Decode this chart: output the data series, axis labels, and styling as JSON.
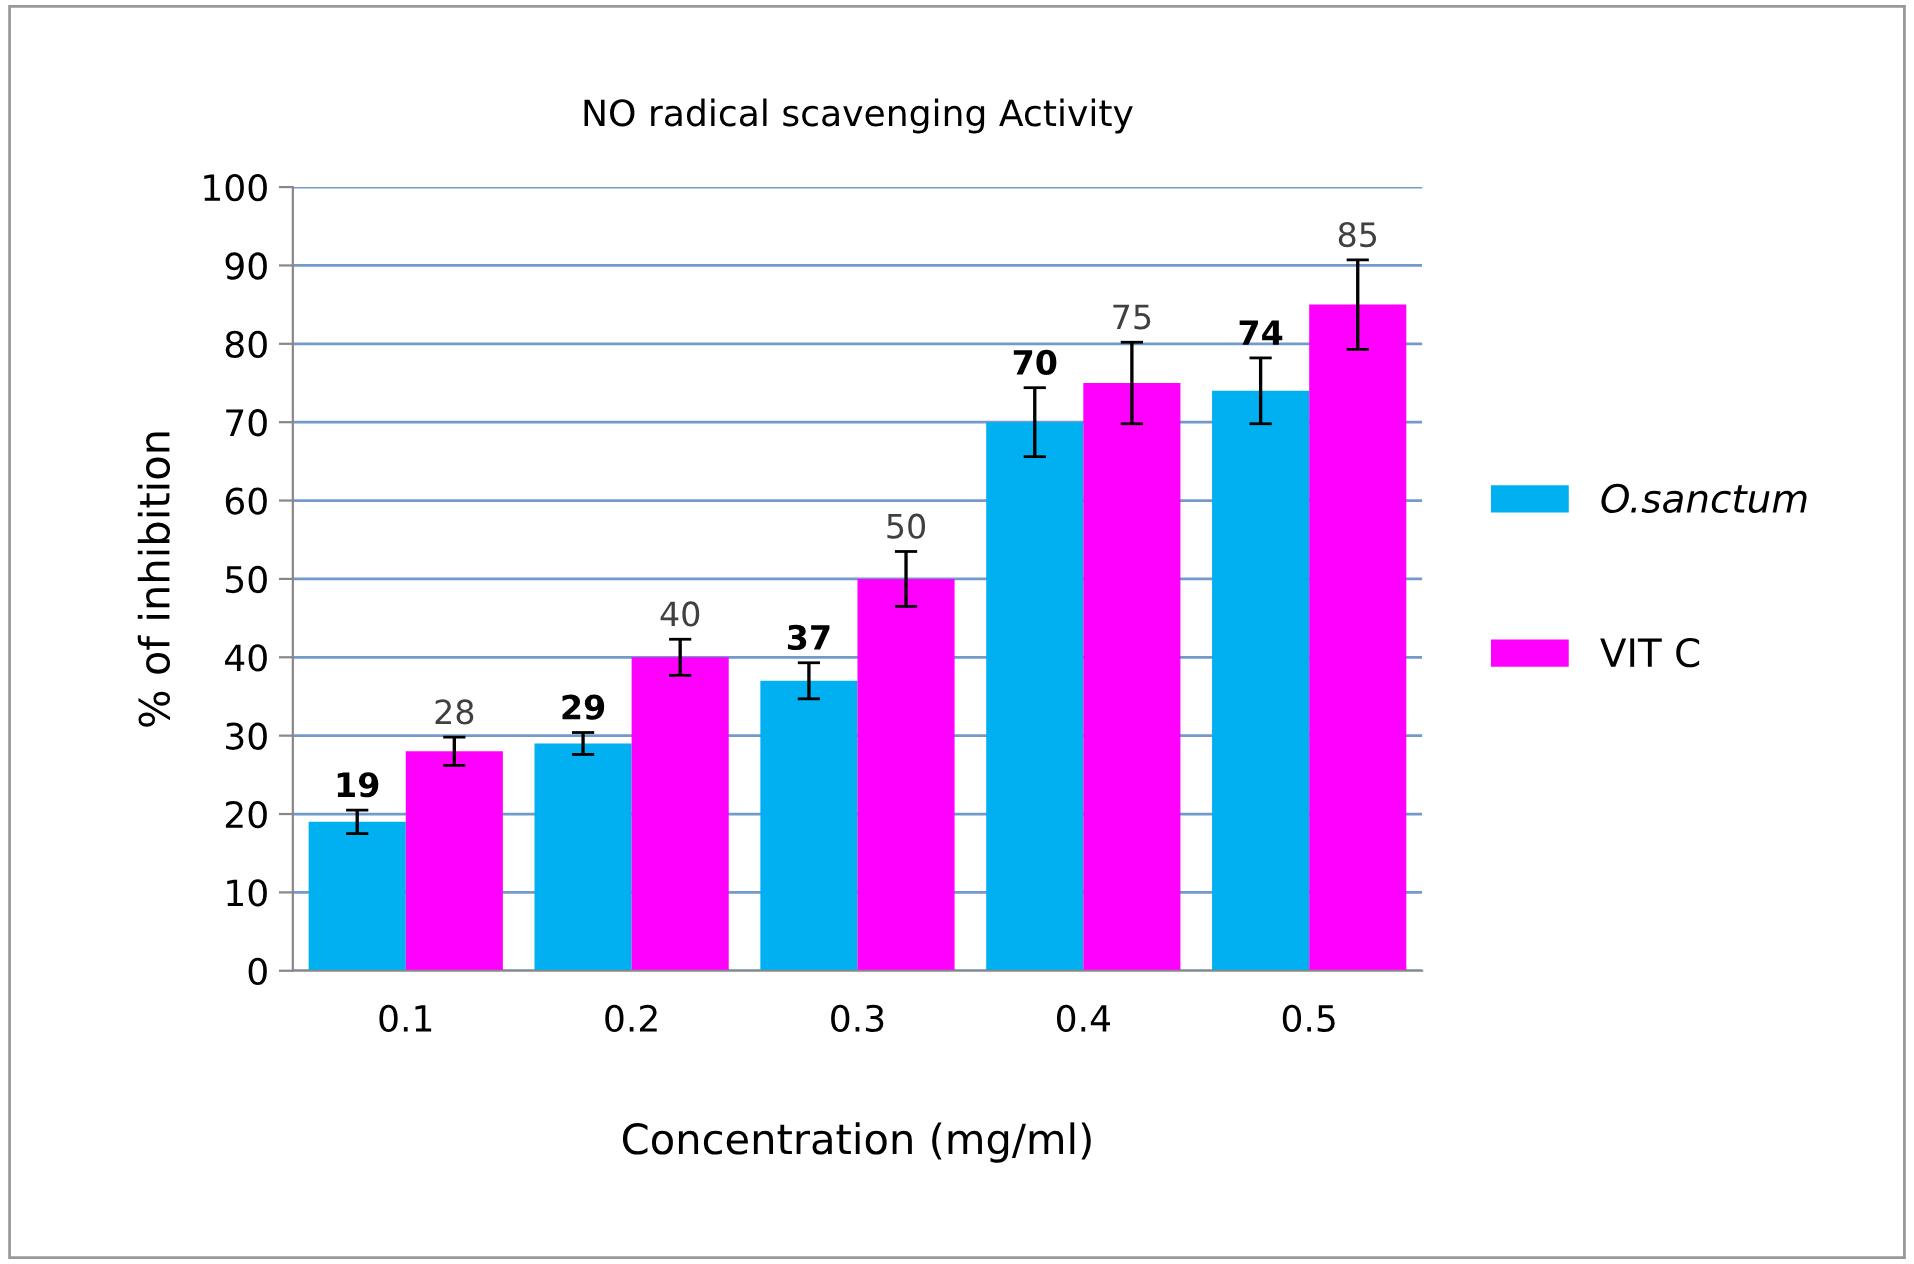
{
  "chart_data": {
    "type": "bar",
    "title": "NO radical scavenging Activity",
    "xlabel": "Concentration (mg/ml)",
    "ylabel": "% of inhibition",
    "categories": [
      "0.1",
      "0.2",
      "0.3",
      "0.4",
      "0.5"
    ],
    "series": [
      {
        "name": "O.sanctum",
        "color": "#00b0f0",
        "values": [
          19,
          29,
          37,
          70,
          74
        ],
        "errors": [
          1.5,
          1.4,
          2.3,
          4.4,
          4.2
        ]
      },
      {
        "name": "VIT C",
        "color": "#ff00ff",
        "values": [
          28,
          40,
          50,
          75,
          85
        ],
        "errors": [
          1.8,
          2.3,
          3.5,
          5.2,
          5.7
        ]
      }
    ],
    "ylim": [
      0,
      100
    ],
    "yticks": [
      0,
      10,
      20,
      30,
      40,
      50,
      60,
      70,
      80,
      90,
      100
    ],
    "grid": "y",
    "legend": "right",
    "data_labels": true
  }
}
